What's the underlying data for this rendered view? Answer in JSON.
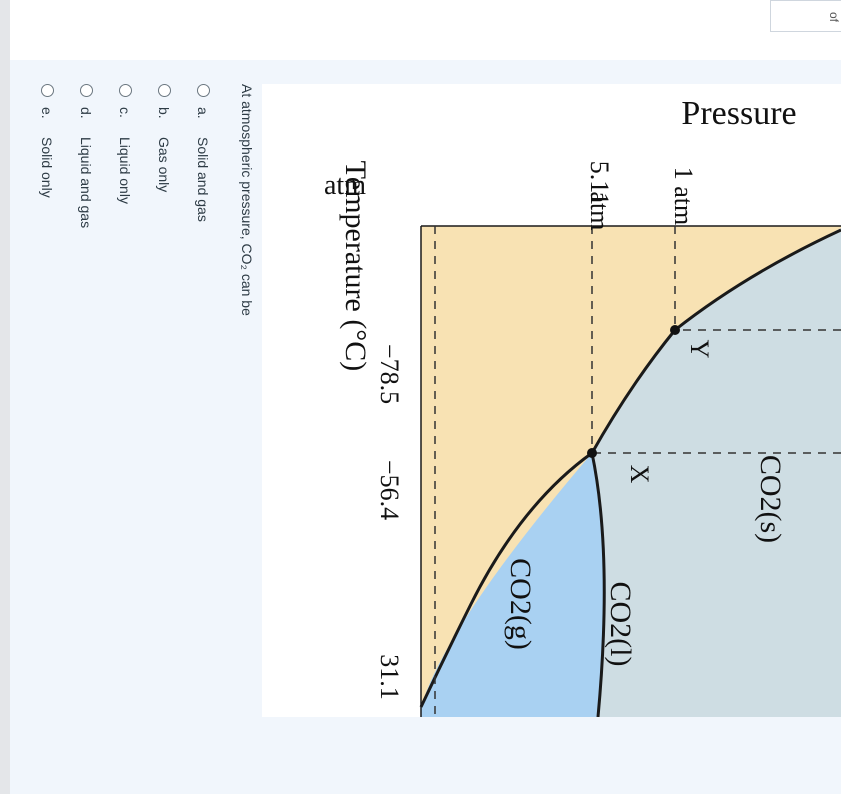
{
  "page_fragment": "of",
  "figure": {
    "y_axis_label": "Pressure",
    "y_tick_top": "atm",
    "y_tick_5_11_line1": "5.11",
    "y_tick_5_11_line2": "atm",
    "y_tick_1atm": "1 atm",
    "x_axis_label": "Temperature (°C)",
    "x_ticks": [
      "−78.5",
      "−56.4",
      "31.1"
    ],
    "regions": {
      "solid": "CO2(s)",
      "liquid": "CO2(l)",
      "gas": "CO2(g)"
    },
    "points": {
      "triple": "X",
      "sublimation": "Y"
    },
    "colors": {
      "solid": "#cedde3",
      "liquid": "#a9d1f2",
      "gas": "#f8e2b3"
    }
  },
  "question": {
    "text": "At atmospheric pressure, CO₂ can be"
  },
  "options": [
    {
      "letter": "a.",
      "text": "Solid and gas"
    },
    {
      "letter": "b.",
      "text": "Gas only"
    },
    {
      "letter": "c.",
      "text": "Liquid only"
    },
    {
      "letter": "d.",
      "text": "Liquid and gas"
    },
    {
      "letter": "e.",
      "text": "Solid only"
    }
  ]
}
